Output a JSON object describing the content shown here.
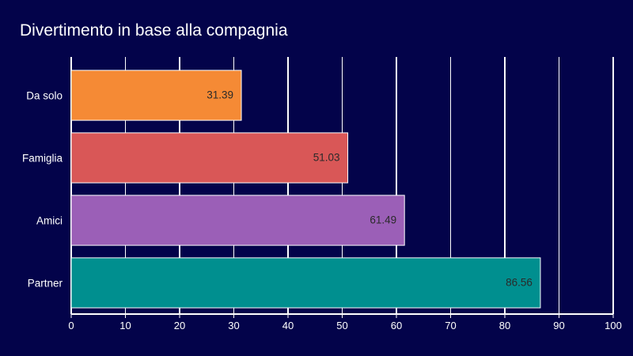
{
  "chart_data": {
    "type": "bar",
    "orientation": "horizontal",
    "title": "Divertimento in base alla compagnia",
    "categories": [
      "Da solo",
      "Famiglia",
      "Amici",
      "Partner"
    ],
    "values": [
      31.39,
      51.03,
      61.49,
      86.56
    ],
    "colors": [
      "#f58a35",
      "#d95757",
      "#9b5fb7",
      "#008f8f"
    ],
    "xlim": [
      0,
      100
    ],
    "xticks": [
      0,
      10,
      20,
      30,
      40,
      50,
      60,
      70,
      80,
      90,
      100
    ],
    "grid": true,
    "legend": "none",
    "xlabel": "",
    "ylabel": ""
  }
}
